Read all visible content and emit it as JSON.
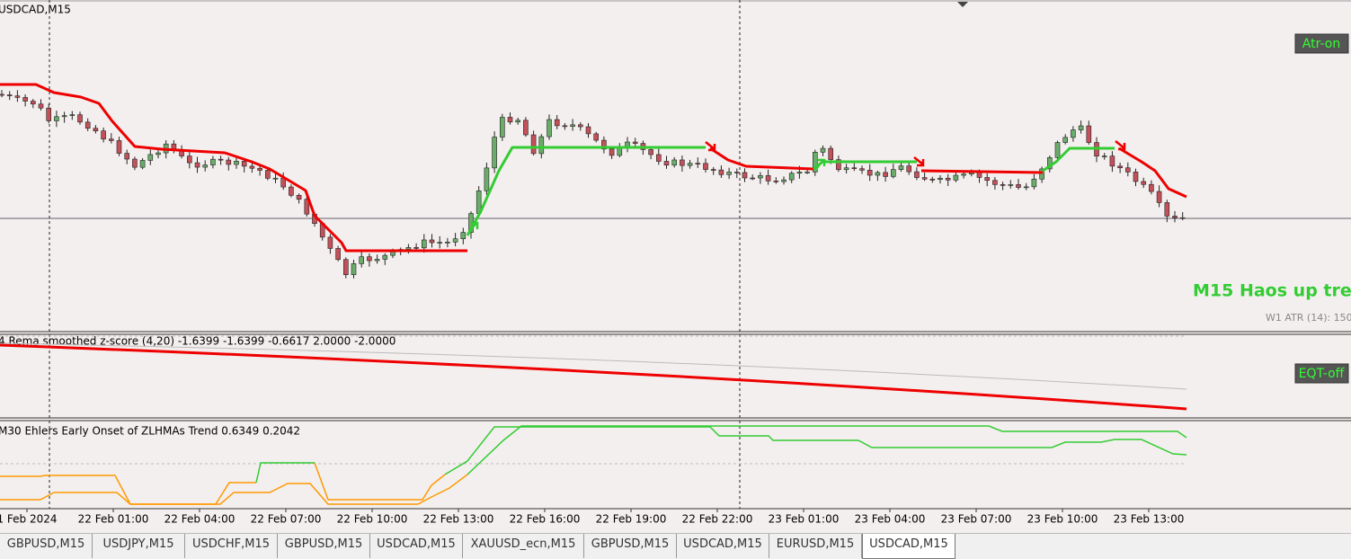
{
  "header": {
    "symbol": "USDCAD,M15"
  },
  "buttons": {
    "atr": "Atr-on",
    "eqt": "EQT-off"
  },
  "main_pane": {
    "trend_label": "M15 Haos up tre",
    "atr_label": "W1 ATR (14): 150"
  },
  "indicator_1": {
    "label": "4 Rema smoothed z-score (4,20) -1.6399 -1.6399 -0.6617 2.0000 -2.0000"
  },
  "indicator_2": {
    "label": "M30 Ehlers Early Onset of ZLHMAs Trend 0.6349 0.2042"
  },
  "time_axis": [
    "1 Feb 2024",
    "22 Feb 01:00",
    "22 Feb 04:00",
    "22 Feb 07:00",
    "22 Feb 10:00",
    "22 Feb 13:00",
    "22 Feb 16:00",
    "22 Feb 19:00",
    "22 Feb 22:00",
    "23 Feb 01:00",
    "23 Feb 04:00",
    "23 Feb 07:00",
    "23 Feb 10:00",
    "23 Feb 13:00"
  ],
  "tabs": [
    "GBPUSD,M15",
    "USDJPY,M15",
    "USDCHF,M15",
    "GBPUSD,M15",
    "USDCAD,M15",
    "XAUUSD_ecn,M15",
    "GBPUSD,M15",
    "USDCAD,M15",
    "EURUSD,M15",
    "USDCAD,M15"
  ]
}
